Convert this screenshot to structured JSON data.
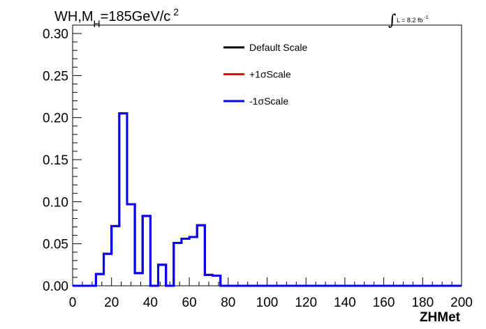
{
  "chart_data": {
    "type": "line",
    "title_parts": {
      "main": "WH,M",
      "subscript": "H",
      "rest": "=185GeV/c",
      "superscript": "2"
    },
    "lumi_label": {
      "text": "L = 8.2 fb",
      "superscript": "-1"
    },
    "xlabel": "ZHMet",
    "ylabel": "",
    "xlim": [
      0,
      200
    ],
    "ylim": [
      0,
      0.31
    ],
    "x_ticks": [
      "0",
      "20",
      "40",
      "60",
      "80",
      "100",
      "120",
      "140",
      "160",
      "180",
      "200"
    ],
    "y_ticks": [
      "0.00",
      "0.05",
      "0.10",
      "0.15",
      "0.20",
      "0.25",
      "0.30"
    ],
    "bin_edges": [
      0,
      4,
      8,
      12,
      16,
      20,
      24,
      28,
      32,
      36,
      40,
      44,
      48,
      52,
      56,
      60,
      64,
      68,
      72,
      76,
      80,
      84,
      88,
      92,
      96,
      100,
      104,
      108,
      112,
      116,
      120,
      124,
      128,
      132,
      136,
      140,
      144,
      148,
      152,
      156,
      160,
      164,
      168,
      172,
      176,
      180,
      184,
      188,
      192,
      196,
      200
    ],
    "series": [
      {
        "name": "Default Scale",
        "color": "#000000",
        "values": [
          0,
          0,
          0,
          0.014,
          0.038,
          0.071,
          0.205,
          0.097,
          0.015,
          0.083,
          0,
          0.025,
          0,
          0.051,
          0.056,
          0.058,
          0.072,
          0.013,
          0.012,
          0,
          0,
          0,
          0,
          0,
          0,
          0,
          0,
          0,
          0,
          0,
          0,
          0,
          0,
          0,
          0,
          0,
          0,
          0,
          0,
          0,
          0,
          0,
          0,
          0,
          0,
          0,
          0,
          0,
          0,
          0
        ]
      },
      {
        "name": "+1σScale",
        "color": "#ff0000",
        "values": [
          0,
          0,
          0,
          0.014,
          0.038,
          0.071,
          0.205,
          0.097,
          0.015,
          0.083,
          0,
          0.025,
          0,
          0.051,
          0.056,
          0.058,
          0.072,
          0.013,
          0.012,
          0,
          0,
          0,
          0,
          0,
          0,
          0,
          0,
          0,
          0,
          0,
          0,
          0,
          0,
          0,
          0,
          0,
          0,
          0,
          0,
          0,
          0,
          0,
          0,
          0,
          0,
          0,
          0,
          0,
          0,
          0
        ]
      },
      {
        "name": "-1σScale",
        "color": "#0000ff",
        "values": [
          0,
          0,
          0,
          0.014,
          0.038,
          0.071,
          0.205,
          0.097,
          0.015,
          0.083,
          0,
          0.025,
          0,
          0.051,
          0.056,
          0.058,
          0.072,
          0.013,
          0.012,
          0,
          0,
          0,
          0,
          0,
          0,
          0,
          0,
          0,
          0,
          0,
          0,
          0,
          0,
          0,
          0,
          0,
          0,
          0,
          0,
          0,
          0,
          0,
          0,
          0,
          0,
          0,
          0,
          0,
          0,
          0
        ]
      }
    ],
    "legend_position": "top-center",
    "grid": false
  }
}
